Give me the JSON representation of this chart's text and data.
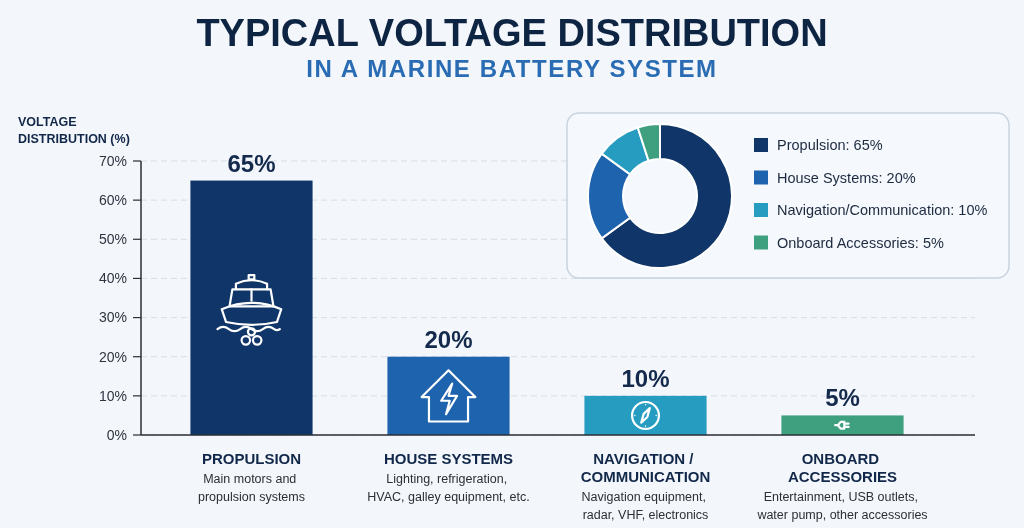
{
  "chart_data": [
    {
      "type": "bar",
      "title": "TYPICAL VOLTAGE DISTRIBUTION",
      "subtitle": "IN A MARINE BATTERY SYSTEM",
      "ylabel": "VOLTAGE\nDISTRIBUTION (%)",
      "categories": [
        "PROPULSION",
        "HOUSE SYSTEMS",
        "NAVIGATION /\nCOMMUNICATION",
        "ONBOARD\nACCESSORIES"
      ],
      "values": [
        65,
        20,
        10,
        5
      ],
      "colors": [
        "#0f3569",
        "#1e63ad",
        "#259cc0",
        "#3fa07f"
      ],
      "value_labels": [
        "65%",
        "20%",
        "10%",
        "5%"
      ],
      "ylim": [
        0,
        70
      ],
      "yticks": [
        {
          "value": 0,
          "label": "0%"
        },
        {
          "value": 10,
          "label": "10%"
        },
        {
          "value": 20,
          "label": "20%"
        },
        {
          "value": 30,
          "label": "30%"
        },
        {
          "value": 40,
          "label": "40%"
        },
        {
          "value": 50,
          "label": "50%"
        },
        {
          "value": 60,
          "label": "60%"
        },
        {
          "value": 70,
          "label": "70%"
        }
      ],
      "grid": "y",
      "annotations": [
        "Main motors and\npropulsion systems",
        "Lighting, refrigeration,\nHVAC, galley equipment, etc.",
        "Navigation equipment,\nradar, VHF, electronics",
        "Entertainment, USB outlets,\nwater pump, other accessories"
      ]
    },
    {
      "type": "donut",
      "categories": [
        "Propulsion: 65%",
        "House Systems: 20%",
        "Navigation/Communication: 10%",
        "Onboard Accessories: 5%"
      ],
      "values": [
        65,
        20,
        10,
        5
      ],
      "colors": [
        "#0f3569",
        "#1e63ad",
        "#259cc0",
        "#3fa07f"
      ],
      "legend": "right"
    }
  ]
}
